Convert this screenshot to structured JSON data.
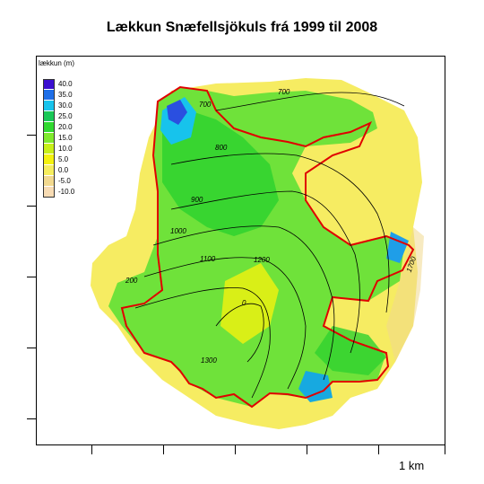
{
  "title": "Lækkun Snæfellsjökuls frá 1999 til 2008",
  "legend": {
    "title": "lækkun (m)",
    "items": [
      {
        "label": "40.0",
        "color": "#3a0fd0"
      },
      {
        "label": "35.0",
        "color": "#1f6fe8"
      },
      {
        "label": "30.0",
        "color": "#17c3ec"
      },
      {
        "label": "25.0",
        "color": "#19c857"
      },
      {
        "label": "20.0",
        "color": "#2fd92f"
      },
      {
        "label": "15.0",
        "color": "#7fea2c"
      },
      {
        "label": "10.0",
        "color": "#c8f018"
      },
      {
        "label": "5.0",
        "color": "#f4f20f"
      },
      {
        "label": "0.0",
        "color": "#f6ee5e"
      },
      {
        "label": "-5.0",
        "color": "#f2d98f"
      },
      {
        "label": "-10.0",
        "color": "#f8dcb4"
      }
    ]
  },
  "contours": {
    "labels": [
      "700",
      "700",
      "800",
      "900",
      "1000",
      "1100",
      "1200",
      "1300",
      "0",
      "1700",
      "200"
    ]
  },
  "glacier_outline_color": "#e00000",
  "scale_label": "1 km"
}
